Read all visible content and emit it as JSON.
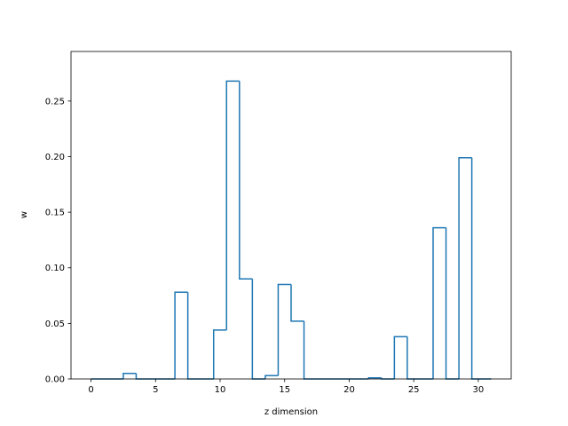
{
  "chart_data": {
    "type": "bar",
    "title": "",
    "xlabel": "z dimension",
    "ylabel": "w",
    "xlim": [
      -1.55,
      32.55
    ],
    "ylim": [
      0,
      0.2946
    ],
    "xticks": [
      0,
      5,
      10,
      15,
      20,
      25,
      30
    ],
    "xtick_labels": [
      "0",
      "5",
      "10",
      "15",
      "20",
      "25",
      "30"
    ],
    "yticks": [
      0.0,
      0.05,
      0.1,
      0.15,
      0.2,
      0.25
    ],
    "ytick_labels": [
      "0.00",
      "0.05",
      "0.10",
      "0.15",
      "0.20",
      "0.25"
    ],
    "grid": false,
    "style": "step-histogram",
    "color": "#1f77b4",
    "bin_edges": [
      0,
      0.5,
      1.5,
      2.5,
      3.5,
      4.5,
      5.5,
      6.5,
      7.5,
      8.5,
      9.5,
      10.5,
      11.5,
      12.5,
      13.5,
      14.5,
      15.5,
      16.5,
      17.5,
      18.5,
      19.5,
      20.5,
      21.5,
      22.5,
      23.5,
      24.5,
      25.5,
      26.5,
      27.5,
      28.5,
      29.5,
      31
    ],
    "values": [
      0,
      0,
      0,
      0.005,
      0,
      0,
      0,
      0.078,
      0,
      0,
      0.044,
      0.268,
      0.09,
      0,
      0.003,
      0.085,
      0.052,
      0,
      0,
      0,
      0,
      0,
      0.001,
      0,
      0.038,
      0,
      0,
      0.136,
      0,
      0.199,
      0
    ]
  }
}
